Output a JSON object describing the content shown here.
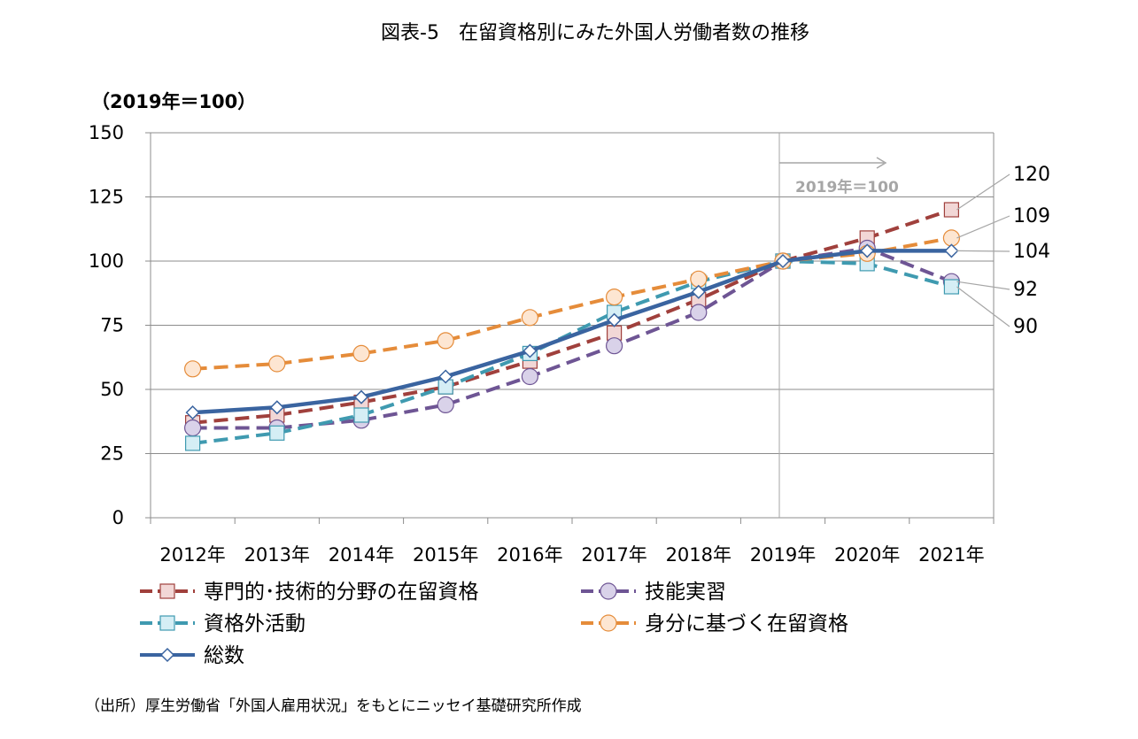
{
  "chart_data": {
    "type": "line",
    "title": "図表-5　在留資格別にみた外国人労働者数の推移",
    "unit_label": "（2019年＝100）",
    "categories": [
      "2012年",
      "2013年",
      "2014年",
      "2015年",
      "2016年",
      "2017年",
      "2018年",
      "2019年",
      "2020年",
      "2021年"
    ],
    "ylim": [
      0,
      150
    ],
    "yticks": [
      "0",
      "25",
      "50",
      "75",
      "100",
      "125",
      "150"
    ],
    "grid": true,
    "legend_position": "bottom",
    "series": [
      {
        "name": "専門的･技術的分野の在留資格",
        "values": [
          37,
          40,
          45,
          51,
          61,
          72,
          85,
          100,
          109,
          120
        ],
        "color": "#a0403c",
        "dash": "dashed",
        "marker": "square",
        "marker_fill": "#f2d7d6"
      },
      {
        "name": "技能実習",
        "values": [
          35,
          35,
          38,
          44,
          55,
          67,
          80,
          100,
          105,
          92
        ],
        "color": "#6e5594",
        "dash": "dashed",
        "marker": "circle",
        "marker_fill": "#d9d2e9"
      },
      {
        "name": "資格外活動",
        "values": [
          29,
          33,
          40,
          51,
          64,
          80,
          92,
          100,
          99,
          90
        ],
        "color": "#3f9ab0",
        "dash": "dashed",
        "marker": "square",
        "marker_fill": "#d5eef5"
      },
      {
        "name": "身分に基づく在留資格",
        "values": [
          58,
          60,
          64,
          69,
          78,
          86,
          93,
          100,
          103,
          109
        ],
        "color": "#e58c3a",
        "dash": "dashed",
        "marker": "circle",
        "marker_fill": "#fde6d2"
      },
      {
        "name": "総数",
        "values": [
          41,
          43,
          47,
          55,
          65,
          77,
          88,
          100,
          104,
          104
        ],
        "color": "#3a64a0",
        "dash": "solid",
        "marker": "diamond",
        "marker_fill": "#ffffff"
      }
    ],
    "end_labels": [
      "120",
      "109",
      "104",
      "92",
      "90"
    ],
    "annotation": "2019年＝100"
  },
  "source_note": "（出所）厚生労働省「外国人雇用状況」をもとにニッセイ基礎研究所作成"
}
